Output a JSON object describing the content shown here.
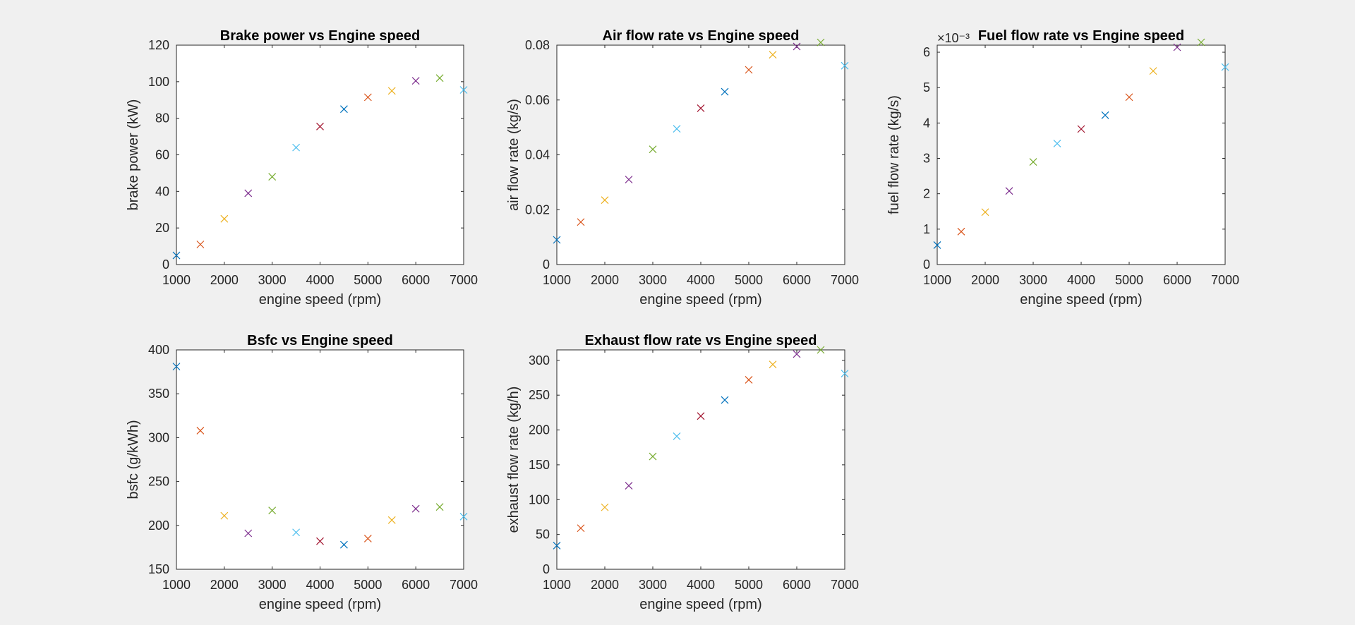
{
  "colors": {
    "background": "#f0f0f0",
    "axes_bg": "#ffffff",
    "series_cycle": [
      "#0072BD",
      "#D95319",
      "#EDB120",
      "#7E2F8E",
      "#77AC30",
      "#4DBEEE",
      "#A2142F"
    ]
  },
  "chart_data": [
    {
      "type": "scatter",
      "marker": "x",
      "title": "Brake power vs Engine speed",
      "xlabel": "engine speed (rpm)",
      "ylabel": "brake power (kW)",
      "xlim": [
        1000,
        7000
      ],
      "ylim": [
        0,
        120
      ],
      "xticks": [
        1000,
        2000,
        3000,
        4000,
        5000,
        6000,
        7000
      ],
      "yticks": [
        0,
        20,
        40,
        60,
        80,
        100,
        120
      ],
      "exponent_label": "",
      "x": [
        1000,
        1500,
        2000,
        2500,
        3000,
        3500,
        4000,
        4500,
        5000,
        5500,
        6000,
        6500,
        7000
      ],
      "y": [
        5,
        11,
        25,
        39,
        48,
        64,
        75.5,
        85,
        91.5,
        95,
        100.5,
        102,
        95.5
      ]
    },
    {
      "type": "scatter",
      "marker": "x",
      "title": "Air flow rate vs Engine speed",
      "xlabel": "engine speed (rpm)",
      "ylabel": "air flow rate (kg/s)",
      "xlim": [
        1000,
        7000
      ],
      "ylim": [
        0,
        0.08
      ],
      "xticks": [
        1000,
        2000,
        3000,
        4000,
        5000,
        6000,
        7000
      ],
      "yticks": [
        0,
        0.02,
        0.04,
        0.06,
        0.08
      ],
      "exponent_label": "",
      "x": [
        1000,
        1500,
        2000,
        2500,
        3000,
        3500,
        4000,
        4500,
        5000,
        5500,
        6000,
        6500,
        7000
      ],
      "y": [
        0.009,
        0.0155,
        0.0235,
        0.031,
        0.042,
        0.0495,
        0.057,
        0.063,
        0.071,
        0.0765,
        0.0795,
        0.081,
        0.0725
      ]
    },
    {
      "type": "scatter",
      "marker": "x",
      "title": "Fuel flow rate vs Engine speed",
      "xlabel": "engine speed (rpm)",
      "ylabel": "fuel flow rate (kg/s)",
      "xlim": [
        1000,
        7000
      ],
      "ylim": [
        0,
        6.2
      ],
      "xticks": [
        1000,
        2000,
        3000,
        4000,
        5000,
        6000,
        7000
      ],
      "yticks": [
        0,
        1,
        2,
        3,
        4,
        5,
        6
      ],
      "exponent_label": "×10⁻³",
      "x": [
        1000,
        1500,
        2000,
        2500,
        3000,
        3500,
        4000,
        4500,
        5000,
        5500,
        6000,
        6500,
        7000
      ],
      "y": [
        0.55,
        0.93,
        1.48,
        2.08,
        2.9,
        3.42,
        3.83,
        4.22,
        4.73,
        5.47,
        6.14,
        6.28,
        5.58
      ]
    },
    {
      "type": "scatter",
      "marker": "x",
      "title": "Bsfc vs Engine speed",
      "xlabel": "engine speed (rpm)",
      "ylabel": "bsfc (g/kWh)",
      "xlim": [
        1000,
        7000
      ],
      "ylim": [
        150,
        400
      ],
      "xticks": [
        1000,
        2000,
        3000,
        4000,
        5000,
        6000,
        7000
      ],
      "yticks": [
        150,
        200,
        250,
        300,
        350,
        400
      ],
      "exponent_label": "",
      "x": [
        1000,
        1500,
        2000,
        2500,
        3000,
        3500,
        4000,
        4500,
        5000,
        5500,
        6000,
        6500,
        7000
      ],
      "y": [
        381,
        308,
        211,
        191,
        217,
        192,
        182,
        178,
        185,
        206,
        219,
        221,
        210
      ]
    },
    {
      "type": "scatter",
      "marker": "x",
      "title": "Exhaust flow rate vs Engine speed",
      "xlabel": "engine speed (rpm)",
      "ylabel": "exhaust flow rate (kg/h)",
      "xlim": [
        1000,
        7000
      ],
      "ylim": [
        0,
        315
      ],
      "xticks": [
        1000,
        2000,
        3000,
        4000,
        5000,
        6000,
        7000
      ],
      "yticks": [
        0,
        50,
        100,
        150,
        200,
        250,
        300
      ],
      "exponent_label": "",
      "x": [
        1000,
        1500,
        2000,
        2500,
        3000,
        3500,
        4000,
        4500,
        5000,
        5500,
        6000,
        6500,
        7000
      ],
      "y": [
        34,
        59,
        89,
        120,
        162,
        191,
        220,
        243,
        272,
        294,
        309,
        315,
        281
      ]
    }
  ]
}
